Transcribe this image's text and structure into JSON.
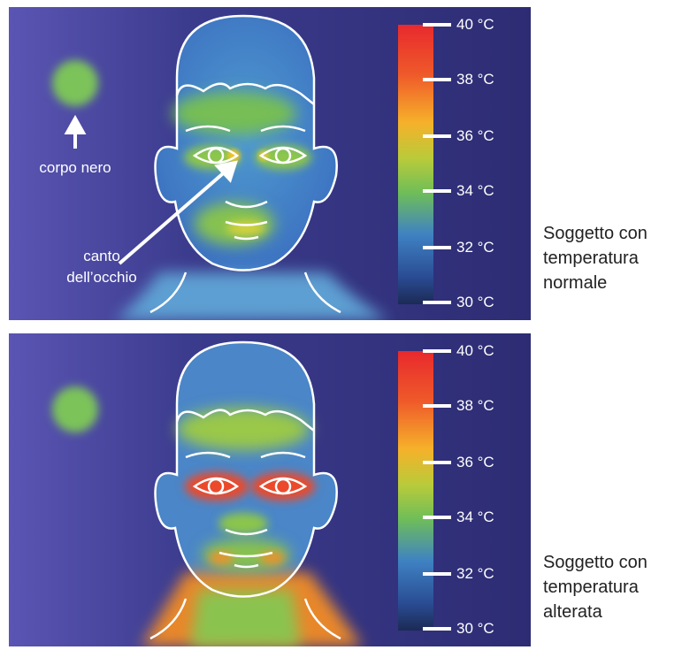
{
  "panels": [
    {
      "id": "normal",
      "caption_lines": [
        "Soggetto con",
        "temperatura",
        "normale"
      ],
      "scale_labels": [
        "40 °C",
        "38 °C",
        "36 °C",
        "34 °C",
        "32 °C",
        "30 °C"
      ],
      "annotations": {
        "blackbody_label": "corpo nero",
        "eye_canthus_label_line1": "canto",
        "eye_canthus_label_line2": "dell’occhio"
      }
    },
    {
      "id": "altered",
      "caption_lines": [
        "Soggetto con",
        "temperatura",
        "alterata"
      ],
      "scale_labels": [
        "40 °C",
        "38 °C",
        "36 °C",
        "34 °C",
        "32 °C",
        "30 °C"
      ]
    }
  ],
  "colors": {
    "background": "#2e2d79",
    "scale_hot": "#e8292d",
    "scale_warm": "#f6a22a",
    "scale_mid": "#f5d32a",
    "scale_cool": "#7ec24f",
    "scale_cold": "#3b78c6",
    "scale_coldest": "#1c2a55"
  }
}
